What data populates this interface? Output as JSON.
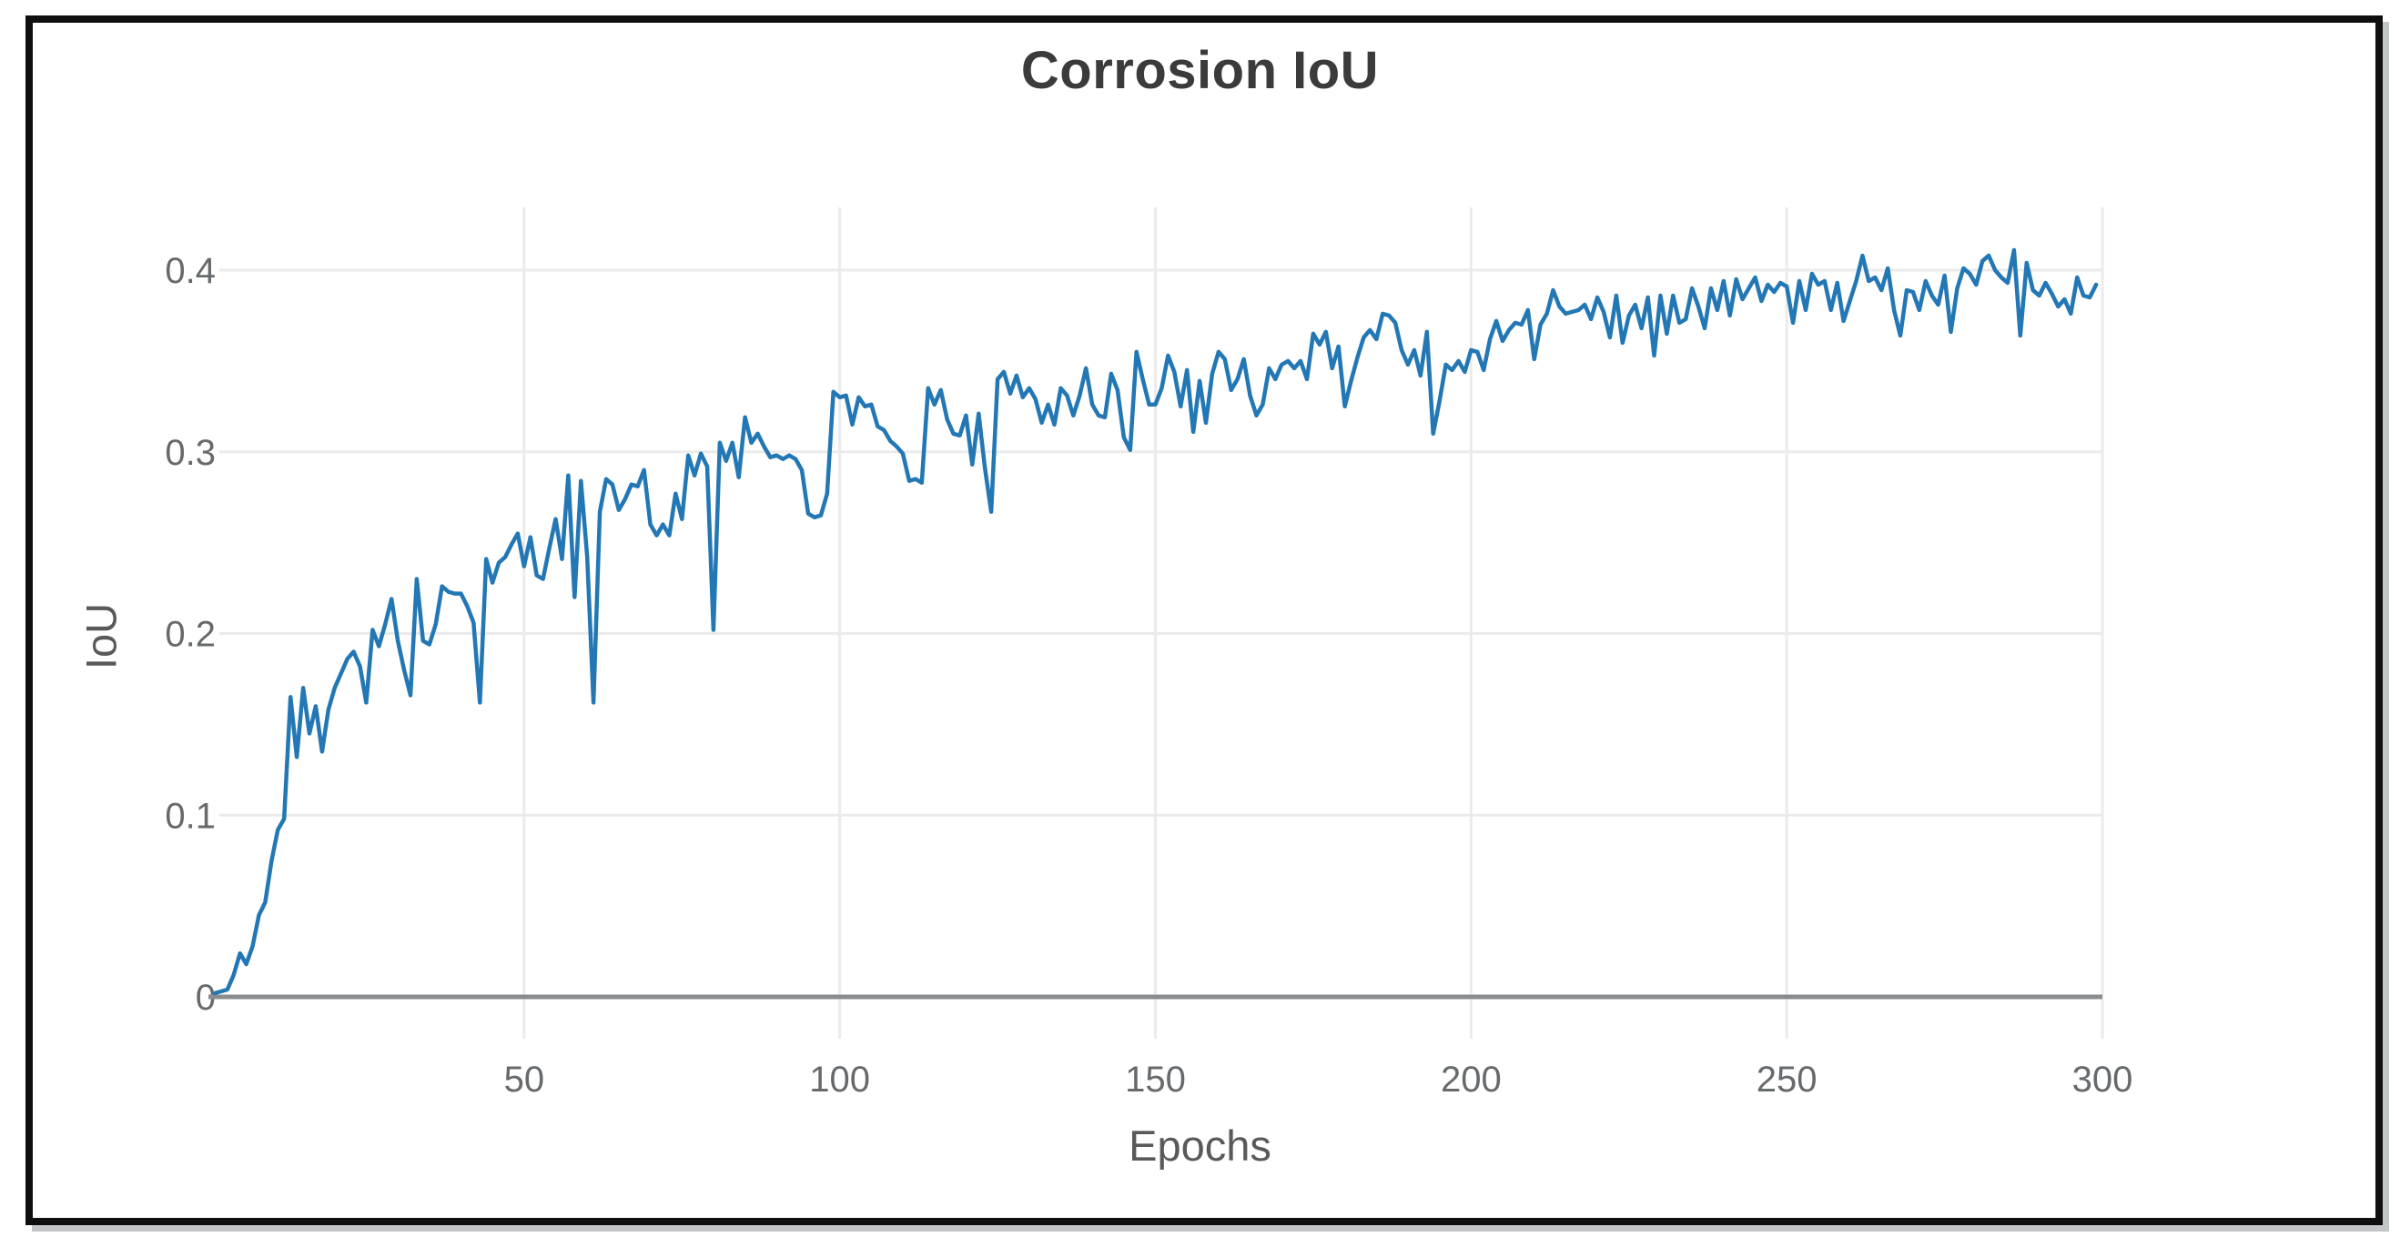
{
  "figure": {
    "title": "Corrosion IoU",
    "x_axis_label": "Epochs",
    "y_axis_label": "IoU",
    "colors": {
      "line": "#2277b4",
      "axis_line": "#8a8d8f",
      "gridline": "#ebebeb",
      "tick_text": "#666a6d",
      "label_text": "#595959",
      "title_text": "#3b3b3b",
      "frame_border": "#0f0f0f",
      "frame_shadow": "#c3c6c7",
      "background": "#ffffff"
    }
  },
  "chart_data": {
    "type": "line",
    "title": "Corrosion IoU",
    "xlabel": "Epochs",
    "ylabel": "IoU",
    "xlim": [
      0,
      300
    ],
    "ylim": [
      0,
      0.435
    ],
    "x_ticks": [
      50,
      100,
      150,
      200,
      250,
      300
    ],
    "y_ticks": [
      0,
      0.1,
      0.2,
      0.3,
      0.4
    ],
    "grid": true,
    "legend": false,
    "series": [
      {
        "name": "IoU",
        "color": "#2277b4",
        "points": [
          [
            1,
            0.002
          ],
          [
            2,
            0.003
          ],
          [
            3,
            0.004
          ],
          [
            4,
            0.012
          ],
          [
            5,
            0.024
          ],
          [
            6,
            0.018
          ],
          [
            7,
            0.028
          ],
          [
            8,
            0.045
          ],
          [
            9,
            0.052
          ],
          [
            10,
            0.075
          ],
          [
            11,
            0.092
          ],
          [
            12,
            0.098
          ],
          [
            13,
            0.165
          ],
          [
            14,
            0.132
          ],
          [
            15,
            0.17
          ],
          [
            16,
            0.145
          ],
          [
            17,
            0.16
          ],
          [
            18,
            0.135
          ],
          [
            19,
            0.158
          ],
          [
            20,
            0.17
          ],
          [
            21,
            0.178
          ],
          [
            22,
            0.186
          ],
          [
            23,
            0.19
          ],
          [
            24,
            0.182
          ],
          [
            25,
            0.162
          ],
          [
            26,
            0.202
          ],
          [
            27,
            0.193
          ],
          [
            28,
            0.205
          ],
          [
            29,
            0.219
          ],
          [
            30,
            0.196
          ],
          [
            31,
            0.18
          ],
          [
            32,
            0.166
          ],
          [
            33,
            0.23
          ],
          [
            34,
            0.196
          ],
          [
            35,
            0.194
          ],
          [
            36,
            0.205
          ],
          [
            37,
            0.226
          ],
          [
            38,
            0.223
          ],
          [
            39,
            0.222
          ],
          [
            40,
            0.222
          ],
          [
            41,
            0.215
          ],
          [
            42,
            0.206
          ],
          [
            43,
            0.162
          ],
          [
            44,
            0.241
          ],
          [
            45,
            0.228
          ],
          [
            46,
            0.239
          ],
          [
            47,
            0.242
          ],
          [
            48,
            0.249
          ],
          [
            49,
            0.255
          ],
          [
            50,
            0.237
          ],
          [
            51,
            0.253
          ],
          [
            52,
            0.232
          ],
          [
            53,
            0.23
          ],
          [
            54,
            0.247
          ],
          [
            55,
            0.263
          ],
          [
            56,
            0.241
          ],
          [
            57,
            0.287
          ],
          [
            58,
            0.22
          ],
          [
            59,
            0.284
          ],
          [
            60,
            0.242
          ],
          [
            61,
            0.162
          ],
          [
            62,
            0.267
          ],
          [
            63,
            0.285
          ],
          [
            64,
            0.282
          ],
          [
            65,
            0.268
          ],
          [
            66,
            0.274
          ],
          [
            67,
            0.282
          ],
          [
            68,
            0.281
          ],
          [
            69,
            0.29
          ],
          [
            70,
            0.26
          ],
          [
            71,
            0.254
          ],
          [
            72,
            0.26
          ],
          [
            73,
            0.254
          ],
          [
            74,
            0.277
          ],
          [
            75,
            0.263
          ],
          [
            76,
            0.298
          ],
          [
            77,
            0.287
          ],
          [
            78,
            0.299
          ],
          [
            79,
            0.292
          ],
          [
            80,
            0.202
          ],
          [
            81,
            0.305
          ],
          [
            82,
            0.295
          ],
          [
            83,
            0.305
          ],
          [
            84,
            0.286
          ],
          [
            85,
            0.319
          ],
          [
            86,
            0.305
          ],
          [
            87,
            0.31
          ],
          [
            88,
            0.303
          ],
          [
            89,
            0.297
          ],
          [
            90,
            0.298
          ],
          [
            91,
            0.296
          ],
          [
            92,
            0.298
          ],
          [
            93,
            0.296
          ],
          [
            94,
            0.29
          ],
          [
            95,
            0.266
          ],
          [
            96,
            0.264
          ],
          [
            97,
            0.265
          ],
          [
            98,
            0.277
          ],
          [
            99,
            0.333
          ],
          [
            100,
            0.33
          ],
          [
            101,
            0.331
          ],
          [
            102,
            0.315
          ],
          [
            103,
            0.33
          ],
          [
            104,
            0.325
          ],
          [
            105,
            0.326
          ],
          [
            106,
            0.314
          ],
          [
            107,
            0.312
          ],
          [
            108,
            0.306
          ],
          [
            109,
            0.303
          ],
          [
            110,
            0.299
          ],
          [
            111,
            0.284
          ],
          [
            112,
            0.285
          ],
          [
            113,
            0.283
          ],
          [
            114,
            0.335
          ],
          [
            115,
            0.326
          ],
          [
            116,
            0.334
          ],
          [
            117,
            0.318
          ],
          [
            118,
            0.31
          ],
          [
            119,
            0.309
          ],
          [
            120,
            0.32
          ],
          [
            121,
            0.293
          ],
          [
            122,
            0.321
          ],
          [
            123,
            0.291
          ],
          [
            124,
            0.267
          ],
          [
            125,
            0.34
          ],
          [
            126,
            0.344
          ],
          [
            127,
            0.332
          ],
          [
            128,
            0.342
          ],
          [
            129,
            0.33
          ],
          [
            130,
            0.335
          ],
          [
            131,
            0.329
          ],
          [
            132,
            0.316
          ],
          [
            133,
            0.326
          ],
          [
            134,
            0.315
          ],
          [
            135,
            0.335
          ],
          [
            136,
            0.331
          ],
          [
            137,
            0.32
          ],
          [
            138,
            0.331
          ],
          [
            139,
            0.346
          ],
          [
            140,
            0.326
          ],
          [
            141,
            0.32
          ],
          [
            142,
            0.319
          ],
          [
            143,
            0.343
          ],
          [
            144,
            0.334
          ],
          [
            145,
            0.308
          ],
          [
            146,
            0.301
          ],
          [
            147,
            0.355
          ],
          [
            148,
            0.34
          ],
          [
            149,
            0.326
          ],
          [
            150,
            0.326
          ],
          [
            151,
            0.335
          ],
          [
            152,
            0.353
          ],
          [
            153,
            0.344
          ],
          [
            154,
            0.325
          ],
          [
            155,
            0.345
          ],
          [
            156,
            0.311
          ],
          [
            157,
            0.339
          ],
          [
            158,
            0.316
          ],
          [
            159,
            0.343
          ],
          [
            160,
            0.355
          ],
          [
            161,
            0.351
          ],
          [
            162,
            0.334
          ],
          [
            163,
            0.34
          ],
          [
            164,
            0.351
          ],
          [
            165,
            0.331
          ],
          [
            166,
            0.32
          ],
          [
            167,
            0.326
          ],
          [
            168,
            0.346
          ],
          [
            169,
            0.34
          ],
          [
            170,
            0.348
          ],
          [
            171,
            0.35
          ],
          [
            172,
            0.346
          ],
          [
            173,
            0.35
          ],
          [
            174,
            0.34
          ],
          [
            175,
            0.365
          ],
          [
            176,
            0.359
          ],
          [
            177,
            0.366
          ],
          [
            178,
            0.346
          ],
          [
            179,
            0.358
          ],
          [
            180,
            0.325
          ],
          [
            181,
            0.339
          ],
          [
            182,
            0.352
          ],
          [
            183,
            0.363
          ],
          [
            184,
            0.367
          ],
          [
            185,
            0.362
          ],
          [
            186,
            0.376
          ],
          [
            187,
            0.375
          ],
          [
            188,
            0.371
          ],
          [
            189,
            0.356
          ],
          [
            190,
            0.348
          ],
          [
            191,
            0.356
          ],
          [
            192,
            0.342
          ],
          [
            193,
            0.366
          ],
          [
            194,
            0.31
          ],
          [
            195,
            0.328
          ],
          [
            196,
            0.348
          ],
          [
            197,
            0.345
          ],
          [
            198,
            0.35
          ],
          [
            199,
            0.344
          ],
          [
            200,
            0.356
          ],
          [
            201,
            0.355
          ],
          [
            202,
            0.345
          ],
          [
            203,
            0.362
          ],
          [
            204,
            0.372
          ],
          [
            205,
            0.361
          ],
          [
            206,
            0.367
          ],
          [
            207,
            0.371
          ],
          [
            208,
            0.37
          ],
          [
            209,
            0.378
          ],
          [
            210,
            0.351
          ],
          [
            211,
            0.37
          ],
          [
            212,
            0.376
          ],
          [
            213,
            0.389
          ],
          [
            214,
            0.38
          ],
          [
            215,
            0.376
          ],
          [
            216,
            0.377
          ],
          [
            217,
            0.378
          ],
          [
            218,
            0.381
          ],
          [
            219,
            0.373
          ],
          [
            220,
            0.385
          ],
          [
            221,
            0.377
          ],
          [
            222,
            0.363
          ],
          [
            223,
            0.386
          ],
          [
            224,
            0.36
          ],
          [
            225,
            0.375
          ],
          [
            226,
            0.381
          ],
          [
            227,
            0.368
          ],
          [
            228,
            0.385
          ],
          [
            229,
            0.353
          ],
          [
            230,
            0.386
          ],
          [
            231,
            0.365
          ],
          [
            232,
            0.386
          ],
          [
            233,
            0.371
          ],
          [
            234,
            0.373
          ],
          [
            235,
            0.39
          ],
          [
            236,
            0.38
          ],
          [
            237,
            0.368
          ],
          [
            238,
            0.39
          ],
          [
            239,
            0.378
          ],
          [
            240,
            0.394
          ],
          [
            241,
            0.375
          ],
          [
            242,
            0.395
          ],
          [
            243,
            0.384
          ],
          [
            244,
            0.39
          ],
          [
            245,
            0.396
          ],
          [
            246,
            0.383
          ],
          [
            247,
            0.392
          ],
          [
            248,
            0.388
          ],
          [
            249,
            0.393
          ],
          [
            250,
            0.391
          ],
          [
            251,
            0.371
          ],
          [
            252,
            0.394
          ],
          [
            253,
            0.378
          ],
          [
            254,
            0.398
          ],
          [
            255,
            0.392
          ],
          [
            256,
            0.394
          ],
          [
            257,
            0.378
          ],
          [
            258,
            0.393
          ],
          [
            259,
            0.372
          ],
          [
            260,
            0.383
          ],
          [
            261,
            0.394
          ],
          [
            262,
            0.408
          ],
          [
            263,
            0.394
          ],
          [
            264,
            0.396
          ],
          [
            265,
            0.389
          ],
          [
            266,
            0.401
          ],
          [
            267,
            0.378
          ],
          [
            268,
            0.364
          ],
          [
            269,
            0.389
          ],
          [
            270,
            0.388
          ],
          [
            271,
            0.378
          ],
          [
            272,
            0.394
          ],
          [
            273,
            0.386
          ],
          [
            274,
            0.381
          ],
          [
            275,
            0.397
          ],
          [
            276,
            0.366
          ],
          [
            277,
            0.39
          ],
          [
            278,
            0.401
          ],
          [
            279,
            0.398
          ],
          [
            280,
            0.392
          ],
          [
            281,
            0.405
          ],
          [
            282,
            0.408
          ],
          [
            283,
            0.4
          ],
          [
            284,
            0.396
          ],
          [
            285,
            0.393
          ],
          [
            286,
            0.411
          ],
          [
            287,
            0.364
          ],
          [
            288,
            0.404
          ],
          [
            289,
            0.389
          ],
          [
            290,
            0.386
          ],
          [
            291,
            0.393
          ],
          [
            292,
            0.387
          ],
          [
            293,
            0.38
          ],
          [
            294,
            0.384
          ],
          [
            295,
            0.376
          ],
          [
            296,
            0.396
          ],
          [
            297,
            0.386
          ],
          [
            298,
            0.385
          ],
          [
            299,
            0.392
          ]
        ]
      }
    ]
  }
}
